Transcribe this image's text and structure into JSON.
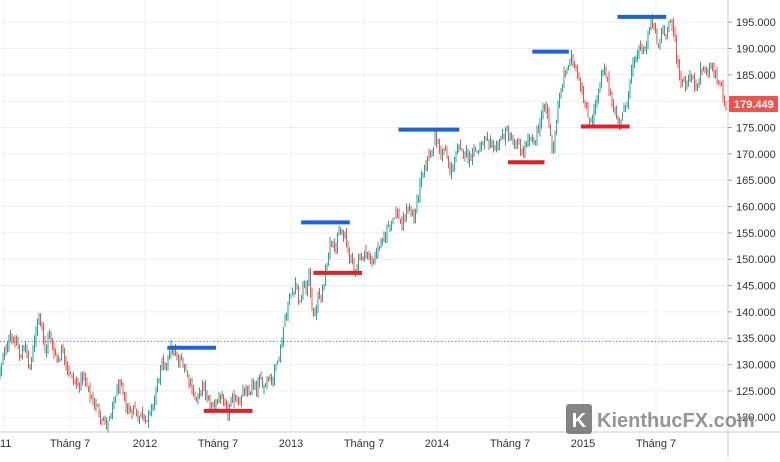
{
  "chart_data": {
    "type": "candlestick",
    "y_axis": {
      "side": "right",
      "ticks": [
        "195.000",
        "190.000",
        "185.000",
        "180.000",
        "175.000",
        "170.000",
        "165.000",
        "160.000",
        "155.000",
        "150.000",
        "145.000",
        "140.000",
        "135.000",
        "130.000",
        "125.000",
        "120.000"
      ],
      "range": [
        117.2,
        199.2
      ]
    },
    "x_axis": {
      "ticks": [
        "11",
        "Tháng 7",
        "2012",
        "Tháng 7",
        "2013",
        "Tháng 7",
        "2014",
        "Tháng 7",
        "2015",
        "Tháng 7"
      ]
    },
    "last_price": {
      "label": "179.449",
      "value": 179.449,
      "color": "#ef5350"
    },
    "reference_line": {
      "value": 134.4,
      "color": "#2962ff",
      "style": "dotted"
    },
    "resistance_levels": [
      {
        "x_start": "2012-03",
        "x_end": "2012-07",
        "value": 133.2
      },
      {
        "x_start": "2013-02",
        "x_end": "2013-06",
        "value": 157.0
      },
      {
        "x_start": "2013-10",
        "x_end": "2014-03",
        "value": 174.6
      },
      {
        "x_start": "2014-09",
        "x_end": "2014-12",
        "value": 189.4
      },
      {
        "x_start": "2015-04",
        "x_end": "2015-08",
        "value": 196.0
      }
    ],
    "support_levels": [
      {
        "x_start": "2012-06",
        "x_end": "2012-10",
        "value": 121.2
      },
      {
        "x_start": "2013-03",
        "x_end": "2013-07",
        "value": 147.4
      },
      {
        "x_start": "2014-07",
        "x_end": "2014-10",
        "value": 168.4
      },
      {
        "x_start": "2015-01",
        "x_end": "2015-05",
        "value": 175.2
      }
    ],
    "price_path": [
      [
        0,
        128.5
      ],
      [
        3,
        131
      ],
      [
        7,
        134
      ],
      [
        11,
        136
      ],
      [
        14,
        133
      ],
      [
        17,
        135
      ],
      [
        20,
        130
      ],
      [
        23,
        134
      ],
      [
        26,
        133
      ],
      [
        29,
        129
      ],
      [
        32,
        131
      ],
      [
        36,
        137
      ],
      [
        39,
        140
      ],
      [
        42,
        137
      ],
      [
        45,
        132
      ],
      [
        49,
        136
      ],
      [
        53,
        133
      ],
      [
        58,
        131
      ],
      [
        63,
        133
      ],
      [
        68,
        129
      ],
      [
        73,
        127
      ],
      [
        78,
        126
      ],
      [
        83,
        128
      ],
      [
        88,
        125
      ],
      [
        93,
        123
      ],
      [
        98,
        121.5
      ],
      [
        103,
        119.5
      ],
      [
        107,
        118.5
      ],
      [
        111,
        120
      ],
      [
        115,
        124
      ],
      [
        118,
        126
      ],
      [
        122,
        125
      ],
      [
        126,
        122
      ],
      [
        130,
        121
      ],
      [
        134,
        122
      ],
      [
        138,
        120
      ],
      [
        143,
        121
      ],
      [
        147,
        119.5
      ],
      [
        151,
        121
      ],
      [
        155,
        124
      ],
      [
        158,
        127
      ],
      [
        162,
        130
      ],
      [
        165,
        129
      ],
      [
        168,
        132
      ],
      [
        172,
        133
      ],
      [
        175,
        132
      ],
      [
        178,
        130
      ],
      [
        181,
        131
      ],
      [
        184,
        130
      ],
      [
        187,
        128
      ],
      [
        190,
        127
      ],
      [
        193,
        125
      ],
      [
        196,
        123
      ],
      [
        199,
        124
      ],
      [
        202,
        126
      ],
      [
        205,
        125
      ],
      [
        208,
        123
      ],
      [
        212,
        122
      ],
      [
        216,
        123
      ],
      [
        220,
        124
      ],
      [
        224,
        122
      ],
      [
        228,
        121
      ],
      [
        232,
        123
      ],
      [
        236,
        124
      ],
      [
        240,
        123
      ],
      [
        244,
        125
      ],
      [
        248,
        124
      ],
      [
        252,
        126
      ],
      [
        256,
        125
      ],
      [
        260,
        127
      ],
      [
        264,
        126
      ],
      [
        268,
        128
      ],
      [
        272,
        127
      ],
      [
        275,
        129
      ],
      [
        278,
        132
      ],
      [
        281,
        133
      ],
      [
        284,
        138
      ],
      [
        287,
        140
      ],
      [
        290,
        143
      ],
      [
        293,
        144
      ],
      [
        296,
        146
      ],
      [
        300,
        141
      ],
      [
        303,
        145
      ],
      [
        306,
        144
      ],
      [
        309,
        147
      ],
      [
        312,
        141
      ],
      [
        315,
        139
      ],
      [
        318,
        143
      ],
      [
        321,
        142
      ],
      [
        324,
        146
      ],
      [
        327,
        150
      ],
      [
        330,
        153
      ],
      [
        333,
        154
      ],
      [
        336,
        152
      ],
      [
        339,
        155
      ],
      [
        342,
        154.5
      ],
      [
        345,
        154
      ],
      [
        348,
        152
      ],
      [
        351,
        150
      ],
      [
        354,
        148
      ],
      [
        357,
        149
      ],
      [
        360,
        151
      ],
      [
        363,
        150
      ],
      [
        366,
        152
      ],
      [
        369,
        150
      ],
      [
        372,
        149
      ],
      [
        375,
        151
      ],
      [
        378,
        152
      ],
      [
        381,
        153
      ],
      [
        384,
        153.5
      ],
      [
        387,
        156
      ],
      [
        390,
        157
      ],
      [
        393,
        158
      ],
      [
        396,
        159
      ],
      [
        399,
        158
      ],
      [
        402,
        156
      ],
      [
        405,
        158
      ],
      [
        408,
        160
      ],
      [
        411,
        159
      ],
      [
        414,
        157.5
      ],
      [
        417,
        161
      ],
      [
        420,
        164
      ],
      [
        423,
        166
      ],
      [
        426,
        168
      ],
      [
        429,
        170
      ],
      [
        432,
        171
      ],
      [
        435,
        173
      ],
      [
        438,
        172
      ],
      [
        441,
        170
      ],
      [
        444,
        171
      ],
      [
        447,
        169
      ],
      [
        450,
        166
      ],
      [
        453,
        168
      ],
      [
        456,
        170
      ],
      [
        459,
        171
      ],
      [
        462,
        170
      ],
      [
        465,
        171
      ],
      [
        468,
        169
      ],
      [
        471,
        170
      ],
      [
        474,
        171
      ],
      [
        477,
        170.5
      ],
      [
        480,
        171
      ],
      [
        483,
        172
      ],
      [
        486,
        172.5
      ],
      [
        489,
        171
      ],
      [
        492,
        172
      ],
      [
        495,
        171
      ],
      [
        498,
        172
      ],
      [
        501,
        173
      ],
      [
        504,
        173.5
      ],
      [
        507,
        174
      ],
      [
        510,
        173
      ],
      [
        513,
        172
      ],
      [
        516,
        171
      ],
      [
        519,
        172
      ],
      [
        522,
        170
      ],
      [
        525,
        171
      ],
      [
        528,
        172
      ],
      [
        531,
        173
      ],
      [
        534,
        172
      ],
      [
        537,
        174
      ],
      [
        540,
        176
      ],
      [
        543,
        178
      ],
      [
        546,
        179
      ],
      [
        549,
        176
      ],
      [
        551,
        172
      ],
      [
        553,
        171
      ],
      [
        555,
        174
      ],
      [
        557,
        177
      ],
      [
        560,
        181
      ],
      [
        563,
        184
      ],
      [
        566,
        186
      ],
      [
        569,
        187
      ],
      [
        572,
        188
      ],
      [
        575,
        187
      ],
      [
        578,
        185
      ],
      [
        580,
        184
      ],
      [
        582,
        182
      ],
      [
        584,
        180
      ],
      [
        586,
        178
      ],
      [
        588,
        177
      ],
      [
        590,
        176
      ],
      [
        592,
        177
      ],
      [
        594,
        178
      ],
      [
        596,
        180
      ],
      [
        598,
        181
      ],
      [
        600,
        183
      ],
      [
        602,
        185
      ],
      [
        604,
        186
      ],
      [
        607,
        184
      ],
      [
        610,
        182
      ],
      [
        613,
        179
      ],
      [
        616,
        177
      ],
      [
        619,
        176
      ],
      [
        622,
        177
      ],
      [
        625,
        179
      ],
      [
        628,
        181
      ],
      [
        631,
        185
      ],
      [
        634,
        187
      ],
      [
        637,
        189
      ],
      [
        640,
        190
      ],
      [
        643,
        189
      ],
      [
        646,
        191
      ],
      [
        649,
        193
      ],
      [
        651,
        195
      ],
      [
        653,
        195
      ],
      [
        655,
        193
      ],
      [
        657,
        191
      ],
      [
        659,
        190
      ],
      [
        661,
        193
      ],
      [
        663,
        194
      ],
      [
        666,
        193
      ],
      [
        669,
        195
      ],
      [
        672,
        194
      ],
      [
        675,
        192
      ],
      [
        677,
        188
      ],
      [
        679,
        185
      ],
      [
        681,
        184
      ],
      [
        683,
        184
      ],
      [
        686,
        183
      ],
      [
        689,
        185
      ],
      [
        692,
        184
      ],
      [
        695,
        183
      ],
      [
        698,
        184
      ],
      [
        701,
        186
      ],
      [
        704,
        186
      ],
      [
        707,
        185
      ],
      [
        710,
        187
      ],
      [
        713,
        186
      ],
      [
        716,
        184
      ],
      [
        719,
        184
      ],
      [
        722,
        182
      ],
      [
        725,
        180
      ],
      [
        727,
        179.449
      ]
    ]
  },
  "watermark": {
    "logo_letter": "K",
    "text": "KienthucFX.com"
  },
  "colors": {
    "background": "#ffffff",
    "grid": "#eceff2",
    "axis_text": "#333333",
    "resistance": "#1e63d6",
    "support": "#e0202b",
    "candle_up": "#26a69a",
    "candle_down": "#ef5350"
  }
}
